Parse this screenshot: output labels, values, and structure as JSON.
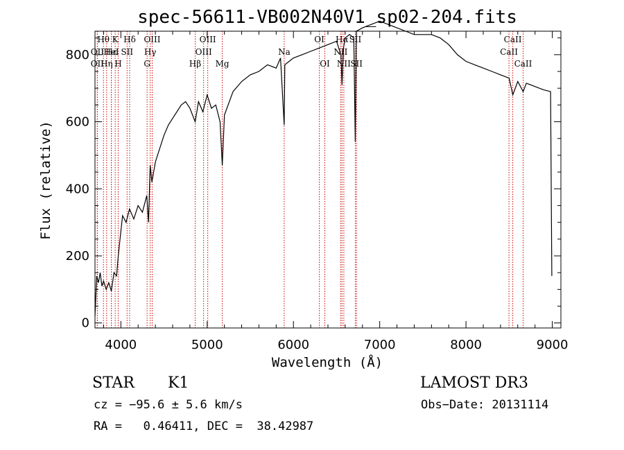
{
  "chart_data": {
    "type": "line",
    "title": "spec-56611-VB002N40V1_sp02-204.fits",
    "xlabel": "Wavelength (Å)",
    "ylabel": "Flux (relative)",
    "xlim": [
      3700,
      9100
    ],
    "ylim": [
      -15,
      870
    ],
    "x_ticks": [
      4000,
      5000,
      6000,
      7000,
      8000,
      9000
    ],
    "y_ticks": [
      0,
      200,
      400,
      600,
      800
    ],
    "grid": false,
    "series": [
      {
        "name": "flux",
        "x": [
          3700,
          3720,
          3740,
          3760,
          3780,
          3800,
          3830,
          3860,
          3890,
          3920,
          3950,
          3970,
          3990,
          4020,
          4060,
          4100,
          4150,
          4200,
          4250,
          4300,
          4320,
          4340,
          4360,
          4400,
          4450,
          4500,
          4550,
          4600,
          4650,
          4700,
          4750,
          4800,
          4861,
          4900,
          4950,
          5000,
          5050,
          5100,
          5150,
          5175,
          5200,
          5300,
          5400,
          5500,
          5600,
          5700,
          5800,
          5850,
          5893,
          5900,
          5950,
          6000,
          6100,
          6200,
          6300,
          6400,
          6500,
          6550,
          6563,
          6580,
          6600,
          6650,
          6700,
          6717,
          6730,
          6800,
          6900,
          7000,
          7100,
          7200,
          7300,
          7400,
          7500,
          7600,
          7700,
          7800,
          7900,
          8000,
          8100,
          8200,
          8300,
          8400,
          8500,
          8542,
          8600,
          8662,
          8700,
          8800,
          8900,
          8980,
          8995
        ],
        "y": [
          20,
          140,
          120,
          150,
          110,
          125,
          100,
          120,
          95,
          150,
          140,
          200,
          250,
          320,
          300,
          340,
          310,
          350,
          330,
          380,
          300,
          470,
          420,
          480,
          520,
          560,
          590,
          610,
          630,
          650,
          660,
          640,
          600,
          660,
          630,
          680,
          640,
          650,
          600,
          470,
          620,
          690,
          720,
          740,
          750,
          770,
          760,
          790,
          590,
          770,
          780,
          790,
          800,
          810,
          820,
          830,
          840,
          800,
          710,
          820,
          850,
          860,
          850,
          540,
          870,
          880,
          890,
          900,
          890,
          880,
          870,
          860,
          860,
          860,
          850,
          830,
          800,
          780,
          770,
          760,
          750,
          740,
          730,
          680,
          720,
          690,
          715,
          705,
          695,
          690,
          140
        ]
      }
    ],
    "lines": [
      {
        "label": "Hθ",
        "x": 3798,
        "row": 0
      },
      {
        "label": "OII",
        "x": 3727,
        "row": 1
      },
      {
        "label": "OII",
        "x": 3727,
        "row": 2
      },
      {
        "label": "Hε",
        "x": 3890,
        "row": 1
      },
      {
        "label": "Hη",
        "x": 3835,
        "row": 2
      },
      {
        "label": "K",
        "x": 3934,
        "row": 0
      },
      {
        "label": "H",
        "x": 3969,
        "row": 2
      },
      {
        "label": "HeI",
        "x": 3889,
        "row": 1
      },
      {
        "label": "Hδ",
        "x": 4102,
        "row": 0
      },
      {
        "label": "SII",
        "x": 4072,
        "row": 1
      },
      {
        "label": "OIII",
        "x": 4363,
        "row": 0
      },
      {
        "label": "Hγ",
        "x": 4340,
        "row": 1
      },
      {
        "label": "G",
        "x": 4304,
        "row": 2
      },
      {
        "label": "OIII",
        "x": 5007,
        "row": 0
      },
      {
        "label": "OIII",
        "x": 4959,
        "row": 1
      },
      {
        "label": "Hβ",
        "x": 4861,
        "row": 2
      },
      {
        "label": "Mg",
        "x": 5175,
        "row": 2
      },
      {
        "label": "Na",
        "x": 5893,
        "row": 1
      },
      {
        "label": "OI",
        "x": 6300,
        "row": 0
      },
      {
        "label": "OI",
        "x": 6364,
        "row": 2
      },
      {
        "label": "Hα",
        "x": 6563,
        "row": 0
      },
      {
        "label": "SII",
        "x": 6717,
        "row": 0
      },
      {
        "label": "NII",
        "x": 6548,
        "row": 1
      },
      {
        "label": "NII",
        "x": 6584,
        "row": 2
      },
      {
        "label": "SII",
        "x": 6731,
        "row": 2
      },
      {
        "label": "CaII",
        "x": 8542,
        "row": 0
      },
      {
        "label": "CaII",
        "x": 8498,
        "row": 1
      },
      {
        "label": "CaII",
        "x": 8662,
        "row": 2
      }
    ]
  },
  "info": {
    "class": "STAR",
    "subclass": "K1",
    "survey": "LAMOST DR3",
    "cz": "cz = −95.6 ± 5.6 km/s",
    "obs_date": "Obs−Date: 20131114",
    "coords": "RA =   0.46411, DEC =  38.42987"
  },
  "colors": {
    "axis": "#000000",
    "spectrum": "#000000",
    "line_marker": "#cc0000"
  }
}
